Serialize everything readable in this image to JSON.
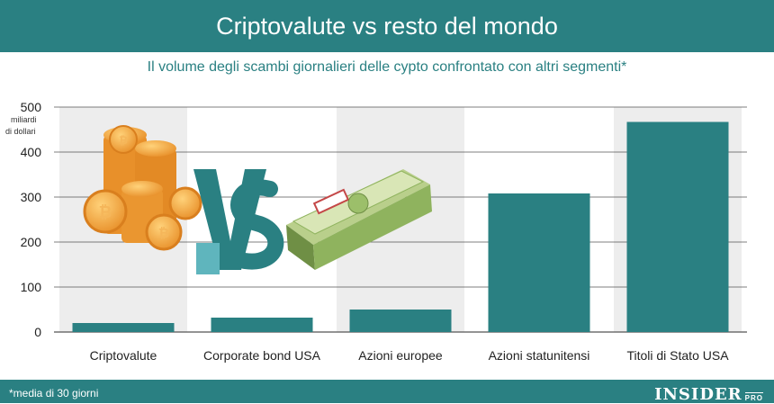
{
  "header": {
    "title": "Criptovalute vs resto del mondo"
  },
  "subtitle": "Il volume degli scambi giornalieri delle cypto confrontato con altri segmenti*",
  "footnote": "*media di 30 giorni",
  "logo": {
    "main": "INSIDER",
    "suffix": "PRO"
  },
  "colors": {
    "teal": "#2a8082",
    "stripe": "#ededed",
    "grid": "#555555"
  },
  "chart_data": {
    "type": "bar",
    "title": "",
    "unit_label": [
      "miliardi",
      "di dollari"
    ],
    "categories": [
      "Criptovalute",
      "Corporate bond USA",
      "Azioni europee",
      "Azioni statunitensi",
      "Titoli di Stato USA"
    ],
    "values": [
      20,
      32,
      50,
      308,
      467
    ],
    "ylim": [
      0,
      500
    ],
    "yticks": [
      0,
      100,
      200,
      300,
      400,
      500
    ],
    "grid": true,
    "illustration": [
      "coin-stacks",
      "vs-letters",
      "dollar-bundle"
    ]
  }
}
